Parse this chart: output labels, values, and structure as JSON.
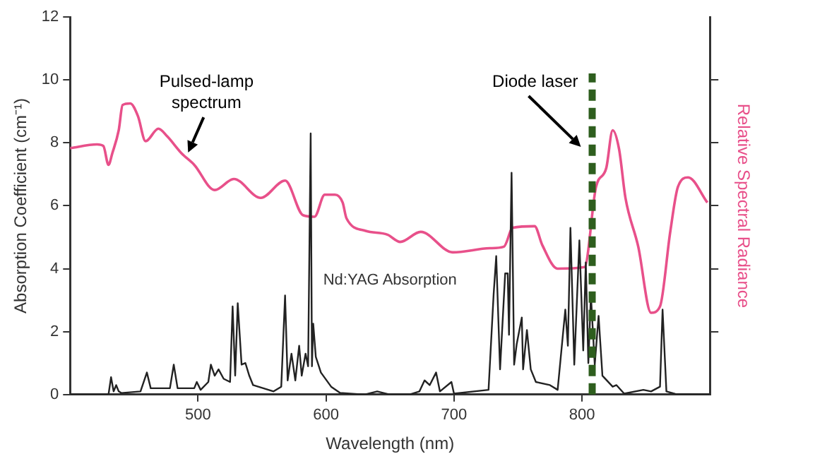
{
  "chart_data": {
    "type": "line",
    "xlabel": "Wavelength (nm)",
    "ylabel": "Absorption Coefficient (cm⁻¹)",
    "y2label": "Relative Spectral Radiance",
    "xlim": [
      400,
      900
    ],
    "xticks": [
      500,
      600,
      700,
      800
    ],
    "ylim": [
      0,
      12
    ],
    "yticks": [
      0,
      2,
      4,
      6,
      8,
      10,
      12
    ],
    "grid": false,
    "legend": false,
    "marker": "none",
    "line_style": "solid",
    "annotations": [
      "Nd:YAG Absorption",
      {
        "text": "Pulsed-lamp spectrum",
        "x": 490,
        "y": 7.6
      }
    ],
    "ref_lines": [
      {
        "axis": "x",
        "value": 808,
        "label": "Diode laser",
        "color": "#2e5e1e",
        "line_style": "dashed"
      }
    ],
    "series": [
      {
        "color": "#222222",
        "x": [
          400,
          430,
          432,
          434,
          436,
          438,
          440,
          455,
          460,
          463,
          478,
          481,
          484,
          497,
          499,
          502,
          508,
          510,
          513,
          516,
          520,
          525,
          527,
          529,
          531,
          534,
          537,
          540,
          543,
          559,
          565,
          568,
          570,
          573,
          576,
          579,
          581,
          584,
          586,
          588,
          589,
          590,
          592,
          596,
          604,
          611,
          630,
          640,
          650,
          665,
          673,
          677,
          681,
          686,
          689,
          698,
          700,
          727,
          731,
          733,
          736,
          740,
          742,
          743,
          745,
          747,
          749,
          753,
          754,
          757,
          760,
          764,
          775,
          781,
          787,
          789,
          791,
          794,
          798,
          801,
          803,
          805,
          807,
          810,
          813,
          816,
          824,
          827,
          833,
          848,
          854,
          861,
          863,
          866,
          873,
          900
        ],
        "values": [
          0,
          0,
          0.55,
          0.1,
          0.3,
          0.1,
          0.05,
          0.1,
          0.7,
          0.2,
          0.2,
          0.95,
          0.2,
          0.2,
          0.4,
          0.15,
          0.4,
          0.95,
          0.6,
          0.8,
          0.5,
          0.4,
          2.8,
          0.6,
          2.9,
          0.95,
          1.0,
          0.6,
          0.3,
          0.1,
          0.25,
          3.15,
          0.45,
          1.3,
          0.45,
          1.55,
          0.6,
          1.3,
          0.9,
          8.3,
          0.9,
          2.25,
          1.2,
          0.7,
          0.25,
          0.05,
          0,
          0.1,
          0,
          0,
          0.1,
          0.45,
          0.3,
          0.7,
          0.1,
          0.4,
          0.03,
          0.15,
          3.2,
          4.4,
          0.8,
          3.85,
          3.85,
          1.9,
          7.05,
          0.95,
          1.6,
          2.45,
          0.8,
          2.05,
          0.8,
          0.4,
          0.3,
          0.15,
          2.7,
          1.55,
          5.3,
          0.95,
          4.9,
          1.4,
          4.2,
          1.0,
          3.15,
          0.95,
          2.5,
          0.6,
          0.25,
          0.3,
          0.03,
          0.15,
          0.1,
          0.25,
          2.7,
          0.1,
          0.02,
          0
        ]
      },
      {
        "color": "#e8508a",
        "x": [
          400,
          421,
          426,
          430,
          433,
          438,
          441,
          447,
          453,
          459,
          469,
          476,
          487,
          497,
          513,
          528,
          549,
          568,
          582,
          591,
          599,
          607,
          613,
          616,
          631,
          648,
          658,
          674,
          699,
          728,
          739,
          746,
          763,
          769,
          781,
          802,
          811,
          819,
          824,
          829,
          834,
          844,
          854,
          861,
          869,
          875,
          883,
          898
        ],
        "values": [
          7.83,
          7.95,
          7.9,
          7.3,
          7.67,
          8.4,
          9.2,
          9.25,
          8.85,
          8.05,
          8.45,
          8.2,
          7.67,
          7.3,
          6.5,
          6.85,
          6.25,
          6.8,
          5.7,
          5.65,
          6.35,
          6.35,
          6.1,
          5.6,
          5.2,
          5.08,
          4.85,
          5.17,
          4.52,
          4.65,
          4.7,
          5.3,
          5.35,
          4.75,
          4.0,
          4.05,
          6.6,
          7.2,
          8.4,
          7.8,
          6.25,
          4.7,
          2.6,
          2.8,
          5.17,
          6.6,
          6.9,
          6.1
        ]
      }
    ]
  }
}
